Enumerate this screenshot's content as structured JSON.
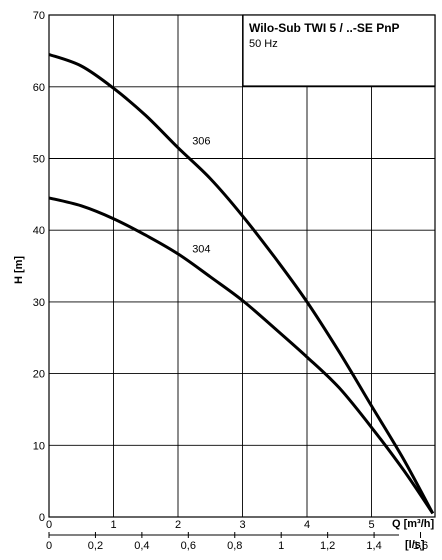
{
  "chart_data": {
    "type": "line",
    "title": "Wilo-Sub TWI 5 / ..-SE PnP",
    "subtitle": "50 Hz",
    "ylabel": "H [m]",
    "xlabel": "Q [m³/h]",
    "x2label": "[l/s]",
    "ylim": [
      0,
      70
    ],
    "xlim": [
      0,
      5.9
    ],
    "y_ticks": [
      0,
      10,
      20,
      30,
      40,
      50,
      60,
      70
    ],
    "x_ticks": [
      0,
      1,
      2,
      3,
      4,
      5
    ],
    "x2_ticks": [
      {
        "text": "0",
        "q": 0
      },
      {
        "text": "0,2",
        "q": 0.72
      },
      {
        "text": "0,4",
        "q": 1.44
      },
      {
        "text": "0,6",
        "q": 2.16
      },
      {
        "text": "0,8",
        "q": 2.88
      },
      {
        "text": "1",
        "q": 3.6
      },
      {
        "text": "1,2",
        "q": 4.32
      },
      {
        "text": "1,4",
        "q": 5.04
      },
      {
        "text": "1,6",
        "q": 5.76
      }
    ],
    "grid": true,
    "legend_position": "top-right",
    "series": [
      {
        "name": "306",
        "label_at": [
          2.22,
          51.5
        ],
        "x": [
          0,
          0.5,
          1.0,
          1.5,
          2.0,
          2.5,
          3.0,
          3.5,
          4.0,
          4.5,
          5.0,
          5.5,
          5.95
        ],
        "y": [
          64.5,
          62.9,
          59.8,
          56.0,
          51.5,
          47.2,
          42.0,
          36.2,
          30.0,
          23.0,
          15.5,
          8.0,
          0.5
        ]
      },
      {
        "name": "304",
        "label_at": [
          2.22,
          36.5
        ],
        "x": [
          0,
          0.5,
          1.0,
          1.5,
          2.0,
          2.5,
          3.0,
          3.5,
          4.0,
          4.5,
          5.0,
          5.5,
          5.95
        ],
        "y": [
          44.5,
          43.4,
          41.6,
          39.3,
          36.7,
          33.5,
          30.2,
          26.3,
          22.3,
          18.0,
          12.5,
          6.5,
          0.5
        ]
      }
    ]
  }
}
